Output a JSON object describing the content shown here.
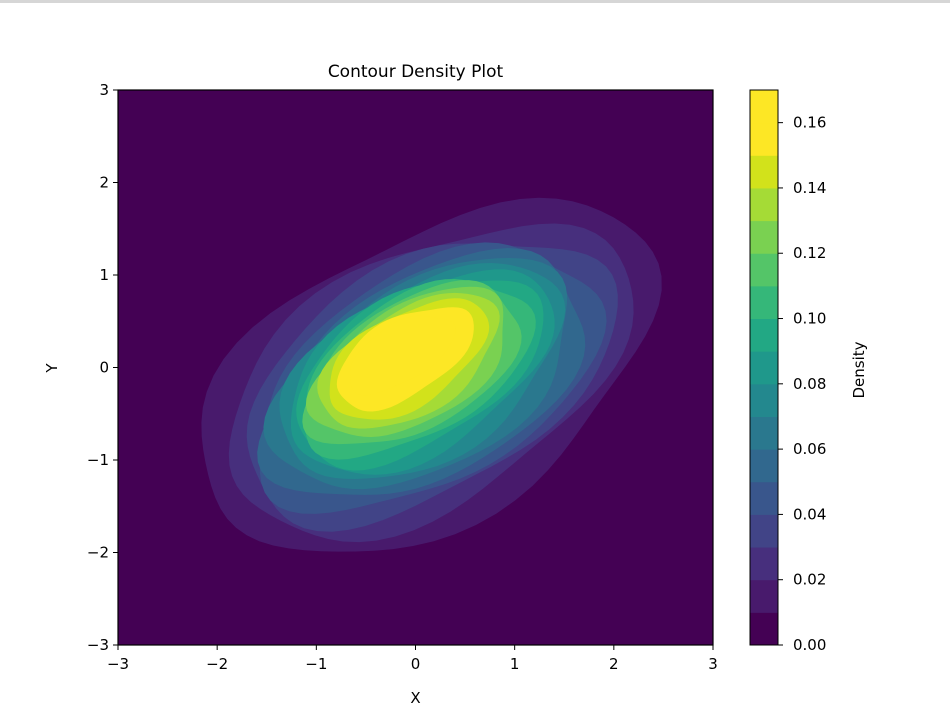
{
  "chart_data": {
    "type": "contour",
    "title": "Contour Density Plot",
    "xlabel": "X",
    "ylabel": "Y",
    "xlim": [
      -3,
      3
    ],
    "ylim": [
      -3,
      3
    ],
    "xticks": [
      "−3",
      "−2",
      "−1",
      "0",
      "1",
      "2",
      "3"
    ],
    "yticks": [
      "−3",
      "−2",
      "−1",
      "0",
      "1",
      "2",
      "3"
    ],
    "colormap": "viridis",
    "grid": false,
    "colorbar": {
      "label": "Density",
      "range": [
        0,
        0.17
      ],
      "levels": [
        0.0,
        0.01,
        0.02,
        0.03,
        0.04,
        0.05,
        0.06,
        0.07,
        0.08,
        0.09,
        0.1,
        0.11,
        0.12,
        0.13,
        0.14,
        0.15,
        0.16,
        0.17
      ],
      "ticks": [
        "0.00",
        "0.02",
        "0.04",
        "0.06",
        "0.08",
        "0.10",
        "0.12",
        "0.14",
        "0.16"
      ],
      "colors": [
        "#440154",
        "#481a6c",
        "#472f7d",
        "#414487",
        "#39568c",
        "#31688e",
        "#2a788e",
        "#23888e",
        "#1f988b",
        "#22a884",
        "#35b779",
        "#54c568",
        "#7ad151",
        "#a5db36",
        "#d2e21b",
        "#fde725",
        "#fde725"
      ]
    },
    "peak": {
      "x": -0.2,
      "y": 0.2,
      "density": 0.165
    },
    "correlation": "positive"
  }
}
